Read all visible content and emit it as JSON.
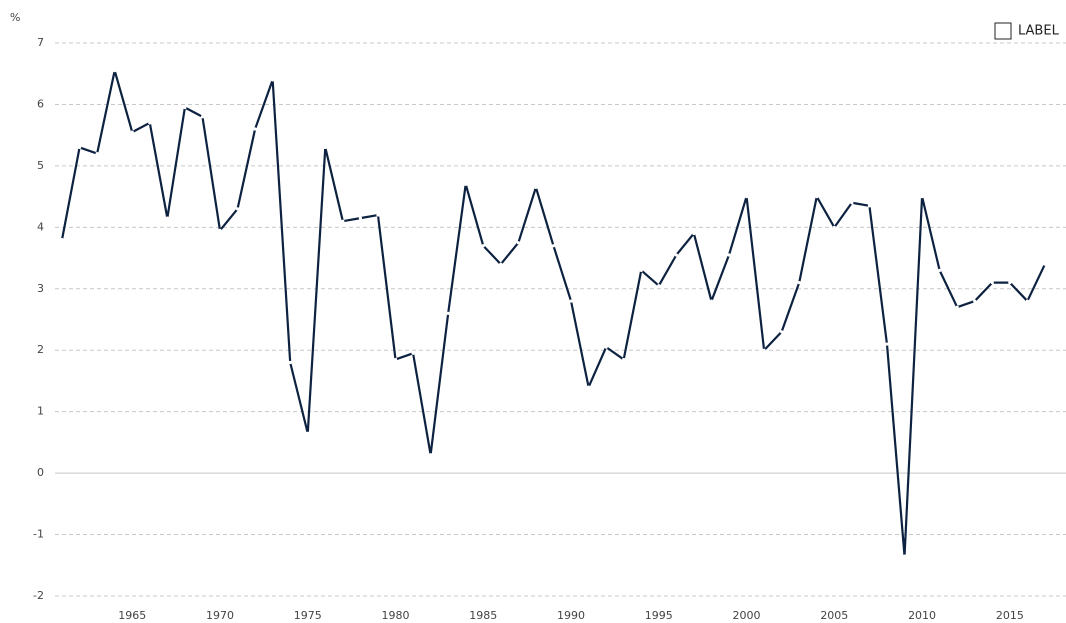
{
  "chart_data": {
    "type": "line",
    "y_unit": "%",
    "x": [
      1961,
      1962,
      1963,
      1964,
      1965,
      1966,
      1967,
      1968,
      1969,
      1970,
      1971,
      1972,
      1973,
      1974,
      1975,
      1976,
      1977,
      1978,
      1979,
      1980,
      1981,
      1982,
      1983,
      1984,
      1985,
      1986,
      1987,
      1988,
      1989,
      1990,
      1991,
      1992,
      1993,
      1994,
      1995,
      1996,
      1997,
      1998,
      1999,
      2000,
      2001,
      2002,
      2003,
      2004,
      2005,
      2006,
      2007,
      2008,
      2009,
      2010,
      2011,
      2012,
      2013,
      2014,
      2015,
      2016,
      2017
    ],
    "series": [
      {
        "name": "LABEL",
        "color": "#0d2240",
        "values": [
          3.8,
          5.3,
          5.2,
          6.55,
          5.55,
          5.7,
          4.15,
          5.95,
          5.8,
          3.95,
          4.3,
          5.6,
          6.4,
          1.8,
          0.65,
          5.3,
          4.1,
          4.15,
          4.2,
          1.85,
          1.95,
          0.3,
          2.6,
          4.7,
          3.7,
          3.4,
          3.75,
          4.65,
          3.7,
          2.8,
          1.4,
          2.05,
          1.85,
          3.3,
          3.05,
          3.55,
          3.9,
          2.8,
          3.55,
          4.5,
          2.0,
          2.3,
          3.1,
          4.5,
          4.0,
          4.4,
          4.35,
          2.1,
          -1.35,
          4.5,
          3.3,
          2.7,
          2.8,
          3.1,
          3.1,
          2.8,
          3.4
        ]
      }
    ],
    "xlim": [
      1960.6,
      2018.2
    ],
    "xticks": [
      1965,
      1970,
      1975,
      1980,
      1985,
      1990,
      1995,
      2000,
      2005,
      2010,
      2015
    ],
    "ylim": [
      -2,
      7
    ],
    "yticks": [
      -2,
      -1,
      0,
      1,
      2,
      3,
      4,
      5,
      6,
      7
    ],
    "grid": true,
    "legend": "top-right"
  }
}
